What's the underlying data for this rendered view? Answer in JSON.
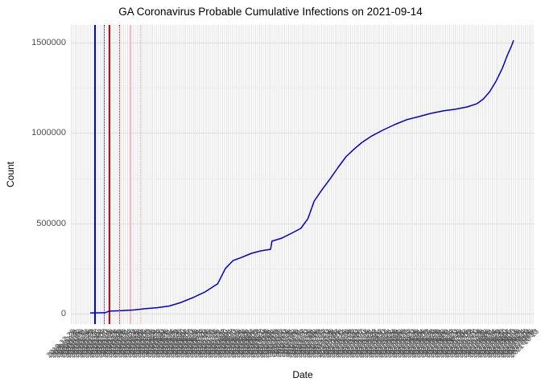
{
  "title": "GA Coronavirus Probable Cumulative Infections on 2021-09-14",
  "x_axis": {
    "label": "Date",
    "tick_label_format": "YYYY-MM-DD",
    "first_date": "2020-01-22",
    "last_date": "2021-09-14",
    "tick_count": 240,
    "tick_label_angle_deg": 45
  },
  "y_axis": {
    "label": "Count",
    "ticks": [
      {
        "label": "0",
        "value": 0
      },
      {
        "label": "500000",
        "value": 500000
      },
      {
        "label": "1000000",
        "value": 1000000
      },
      {
        "label": "1500000",
        "value": 1500000
      }
    ],
    "minor_ticks": [
      250000,
      750000,
      1250000
    ]
  },
  "colors": {
    "curve": "#0000CC",
    "vline_blue": "#0000EE",
    "vline_red": "#DD0000",
    "vline_pink": "#FFB6C1",
    "grid_major": "#dedede",
    "grid_minor": "#ececec",
    "grid_vertical": "#e3e3e3",
    "axis_text": "#4d4d4d",
    "title_text": "#000000"
  },
  "chart_data": {
    "type": "line",
    "title": "GA Coronavirus Probable Cumulative Infections on 2021-09-14",
    "xlabel": "Date",
    "ylabel": "Count",
    "ylim": [
      0,
      1500000
    ],
    "x_range": [
      "2020-01-22",
      "2021-09-14"
    ],
    "grid": true,
    "legend": false,
    "series": [
      {
        "name": "probable-cumulative-infections",
        "color": "#0000CC",
        "points": [
          [
            "2020-01-22",
            4000
          ],
          [
            "2020-02-12",
            5000
          ],
          [
            "2020-02-18",
            14000
          ],
          [
            "2020-03-05",
            16000
          ],
          [
            "2020-03-23",
            20000
          ],
          [
            "2020-04-09",
            27000
          ],
          [
            "2020-04-26",
            33000
          ],
          [
            "2020-05-13",
            42000
          ],
          [
            "2020-05-30",
            62000
          ],
          [
            "2020-06-16",
            89000
          ],
          [
            "2020-07-03",
            120000
          ],
          [
            "2020-07-21",
            165000
          ],
          [
            "2020-08-01",
            250000
          ],
          [
            "2020-08-12",
            294000
          ],
          [
            "2020-08-24",
            311000
          ],
          [
            "2020-09-07",
            334000
          ],
          [
            "2020-09-20",
            347000
          ],
          [
            "2020-10-04",
            356000
          ],
          [
            "2020-10-06",
            401000
          ],
          [
            "2020-10-20",
            418000
          ],
          [
            "2020-11-03",
            445000
          ],
          [
            "2020-11-16",
            472000
          ],
          [
            "2020-11-26",
            525000
          ],
          [
            "2020-12-05",
            623000
          ],
          [
            "2020-12-16",
            685000
          ],
          [
            "2020-12-28",
            748000
          ],
          [
            "2021-01-08",
            810000
          ],
          [
            "2021-01-19",
            868000
          ],
          [
            "2021-01-31",
            912000
          ],
          [
            "2021-02-11",
            948000
          ],
          [
            "2021-02-25",
            984000
          ],
          [
            "2021-03-12",
            1015000
          ],
          [
            "2021-03-29",
            1046000
          ],
          [
            "2021-04-15",
            1073000
          ],
          [
            "2021-05-02",
            1090000
          ],
          [
            "2021-05-19",
            1108000
          ],
          [
            "2021-06-06",
            1122000
          ],
          [
            "2021-06-23",
            1131000
          ],
          [
            "2021-07-10",
            1144000
          ],
          [
            "2021-07-24",
            1162000
          ],
          [
            "2021-08-02",
            1188000
          ],
          [
            "2021-08-11",
            1228000
          ],
          [
            "2021-08-20",
            1286000
          ],
          [
            "2021-08-29",
            1358000
          ],
          [
            "2021-09-05",
            1429000
          ],
          [
            "2021-09-11",
            1482000
          ],
          [
            "2021-09-14",
            1513000
          ]
        ]
      }
    ],
    "vlines": [
      {
        "date": "2020-01-28",
        "color": "#0000EE",
        "style": "solid"
      },
      {
        "date": "2020-02-10",
        "color": "#0000EE",
        "style": "dotted"
      },
      {
        "date": "2020-02-17",
        "color": "#DD0000",
        "style": "solid"
      },
      {
        "date": "2020-03-03",
        "color": "#DD0000",
        "style": "dotted"
      },
      {
        "date": "2020-03-18",
        "color": "#FFB6C1",
        "style": "solid"
      },
      {
        "date": "2020-04-02",
        "color": "#FFB6C1",
        "style": "dotted"
      }
    ]
  }
}
